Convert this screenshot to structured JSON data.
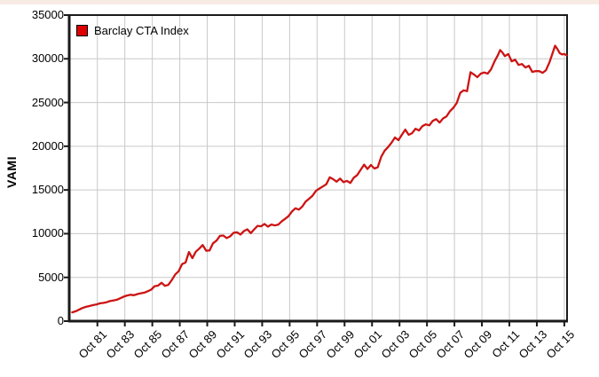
{
  "page": {
    "top_strip_color": "#f8ebe4",
    "background_color": "#ffffff"
  },
  "chart_data": {
    "type": "line",
    "title": "",
    "xlabel": "",
    "ylabel": "VAMI",
    "grid": true,
    "legend_position": "top-left-inside",
    "legend": [
      {
        "label": "Barclay CTA Index",
        "color": "#dd0000"
      }
    ],
    "line_color": "#cc1414",
    "grid_color": "#c9c9c9",
    "axis_color": "#1a1a1a",
    "y_range": [
      0,
      35000
    ],
    "y_ticks": [
      0,
      5000,
      10000,
      15000,
      20000,
      25000,
      30000,
      35000
    ],
    "x_range": [
      1979.7,
      2015.95
    ],
    "x_ticks": [
      {
        "label": "Oct 81",
        "t": 1981.75
      },
      {
        "label": "Oct 83",
        "t": 1983.75
      },
      {
        "label": "Oct 85",
        "t": 1985.75
      },
      {
        "label": "Oct 87",
        "t": 1987.75
      },
      {
        "label": "Oct 89",
        "t": 1989.75
      },
      {
        "label": "Oct 91",
        "t": 1991.75
      },
      {
        "label": "Oct 93",
        "t": 1993.75
      },
      {
        "label": "Oct 95",
        "t": 1995.75
      },
      {
        "label": "Oct 97",
        "t": 1997.75
      },
      {
        "label": "Oct 99",
        "t": 1999.75
      },
      {
        "label": "Oct 01",
        "t": 2001.75
      },
      {
        "label": "Oct 03",
        "t": 2003.75
      },
      {
        "label": "Oct 05",
        "t": 2005.75
      },
      {
        "label": "Oct 07",
        "t": 2007.75
      },
      {
        "label": "Oct 09",
        "t": 2009.75
      },
      {
        "label": "Oct 11",
        "t": 2011.75
      },
      {
        "label": "Oct 13",
        "t": 2013.75
      },
      {
        "label": "Oct 15",
        "t": 2015.75
      }
    ],
    "series": [
      {
        "name": "Barclay CTA Index",
        "points": [
          [
            1979.92,
            1000
          ],
          [
            1980.17,
            1130
          ],
          [
            1980.42,
            1310
          ],
          [
            1980.67,
            1500
          ],
          [
            1980.92,
            1637
          ],
          [
            1981.17,
            1720
          ],
          [
            1981.42,
            1830
          ],
          [
            1981.67,
            1900
          ],
          [
            1981.92,
            2028
          ],
          [
            1982.17,
            2080
          ],
          [
            1982.42,
            2160
          ],
          [
            1982.67,
            2290
          ],
          [
            1982.92,
            2366
          ],
          [
            1983.17,
            2450
          ],
          [
            1983.42,
            2620
          ],
          [
            1983.67,
            2800
          ],
          [
            1983.92,
            2928
          ],
          [
            1984.17,
            3010
          ],
          [
            1984.42,
            2960
          ],
          [
            1984.67,
            3090
          ],
          [
            1984.92,
            3184
          ],
          [
            1985.17,
            3260
          ],
          [
            1985.42,
            3420
          ],
          [
            1985.67,
            3600
          ],
          [
            1985.92,
            3996
          ],
          [
            1986.17,
            4060
          ],
          [
            1986.42,
            4380
          ],
          [
            1986.67,
            4040
          ],
          [
            1986.92,
            4149
          ],
          [
            1987.17,
            4700
          ],
          [
            1987.42,
            5350
          ],
          [
            1987.67,
            5700
          ],
          [
            1987.92,
            6525
          ],
          [
            1988.17,
            6700
          ],
          [
            1988.42,
            7900
          ],
          [
            1988.67,
            7200
          ],
          [
            1988.92,
            7945
          ],
          [
            1989.17,
            8300
          ],
          [
            1989.42,
            8700
          ],
          [
            1989.67,
            8050
          ],
          [
            1989.92,
            8088
          ],
          [
            1990.17,
            8900
          ],
          [
            1990.42,
            9200
          ],
          [
            1990.67,
            9750
          ],
          [
            1990.92,
            9788
          ],
          [
            1991.17,
            9500
          ],
          [
            1991.42,
            9700
          ],
          [
            1991.67,
            10100
          ],
          [
            1991.92,
            10153
          ],
          [
            1992.17,
            9900
          ],
          [
            1992.42,
            10300
          ],
          [
            1992.67,
            10500
          ],
          [
            1992.92,
            10061
          ],
          [
            1993.17,
            10500
          ],
          [
            1993.42,
            10900
          ],
          [
            1993.67,
            10850
          ],
          [
            1993.92,
            11104
          ],
          [
            1994.17,
            10800
          ],
          [
            1994.42,
            11050
          ],
          [
            1994.67,
            10950
          ],
          [
            1994.92,
            11032
          ],
          [
            1995.17,
            11400
          ],
          [
            1995.42,
            11700
          ],
          [
            1995.67,
            12000
          ],
          [
            1995.92,
            12537
          ],
          [
            1996.17,
            12900
          ],
          [
            1996.42,
            12750
          ],
          [
            1996.67,
            13100
          ],
          [
            1996.92,
            13680
          ],
          [
            1997.17,
            14000
          ],
          [
            1997.42,
            14350
          ],
          [
            1997.67,
            14900
          ],
          [
            1997.92,
            15170
          ],
          [
            1998.17,
            15400
          ],
          [
            1998.42,
            15650
          ],
          [
            1998.67,
            16450
          ],
          [
            1998.92,
            16233
          ],
          [
            1999.17,
            15950
          ],
          [
            1999.42,
            16300
          ],
          [
            1999.67,
            15900
          ],
          [
            1999.92,
            16040
          ],
          [
            2000.17,
            15800
          ],
          [
            2000.42,
            16400
          ],
          [
            2000.67,
            16700
          ],
          [
            2000.92,
            17301
          ],
          [
            2001.17,
            17900
          ],
          [
            2001.42,
            17400
          ],
          [
            2001.67,
            17850
          ],
          [
            2001.92,
            17446
          ],
          [
            2002.17,
            17600
          ],
          [
            2002.42,
            18800
          ],
          [
            2002.67,
            19500
          ],
          [
            2002.92,
            19900
          ],
          [
            2003.17,
            20400
          ],
          [
            2003.42,
            21000
          ],
          [
            2003.67,
            20700
          ],
          [
            2003.92,
            21306
          ],
          [
            2004.17,
            21900
          ],
          [
            2004.42,
            21300
          ],
          [
            2004.67,
            21500
          ],
          [
            2004.92,
            22009
          ],
          [
            2005.17,
            21800
          ],
          [
            2005.42,
            22300
          ],
          [
            2005.67,
            22500
          ],
          [
            2005.92,
            22386
          ],
          [
            2006.17,
            22900
          ],
          [
            2006.42,
            23100
          ],
          [
            2006.67,
            22700
          ],
          [
            2006.92,
            23178
          ],
          [
            2007.17,
            23400
          ],
          [
            2007.42,
            24000
          ],
          [
            2007.67,
            24400
          ],
          [
            2007.92,
            24949
          ],
          [
            2008.17,
            26100
          ],
          [
            2008.42,
            26400
          ],
          [
            2008.67,
            26300
          ],
          [
            2008.92,
            28464
          ],
          [
            2009.17,
            28200
          ],
          [
            2009.42,
            27900
          ],
          [
            2009.67,
            28300
          ],
          [
            2009.92,
            28436
          ],
          [
            2010.17,
            28300
          ],
          [
            2010.42,
            28800
          ],
          [
            2010.67,
            29700
          ],
          [
            2010.92,
            30440
          ],
          [
            2011.08,
            31000
          ],
          [
            2011.25,
            30700
          ],
          [
            2011.42,
            30300
          ],
          [
            2011.67,
            30550
          ],
          [
            2011.92,
            29700
          ],
          [
            2012.17,
            29900
          ],
          [
            2012.42,
            29300
          ],
          [
            2012.67,
            29400
          ],
          [
            2012.92,
            29000
          ],
          [
            2013.17,
            29200
          ],
          [
            2013.42,
            28500
          ],
          [
            2013.67,
            28600
          ],
          [
            2013.92,
            28586
          ],
          [
            2014.17,
            28400
          ],
          [
            2014.42,
            28700
          ],
          [
            2014.67,
            29600
          ],
          [
            2014.92,
            30762
          ],
          [
            2015.08,
            31500
          ],
          [
            2015.25,
            31100
          ],
          [
            2015.42,
            30650
          ],
          [
            2015.58,
            30500
          ],
          [
            2015.75,
            30550
          ],
          [
            2015.92,
            30400
          ]
        ]
      }
    ]
  }
}
